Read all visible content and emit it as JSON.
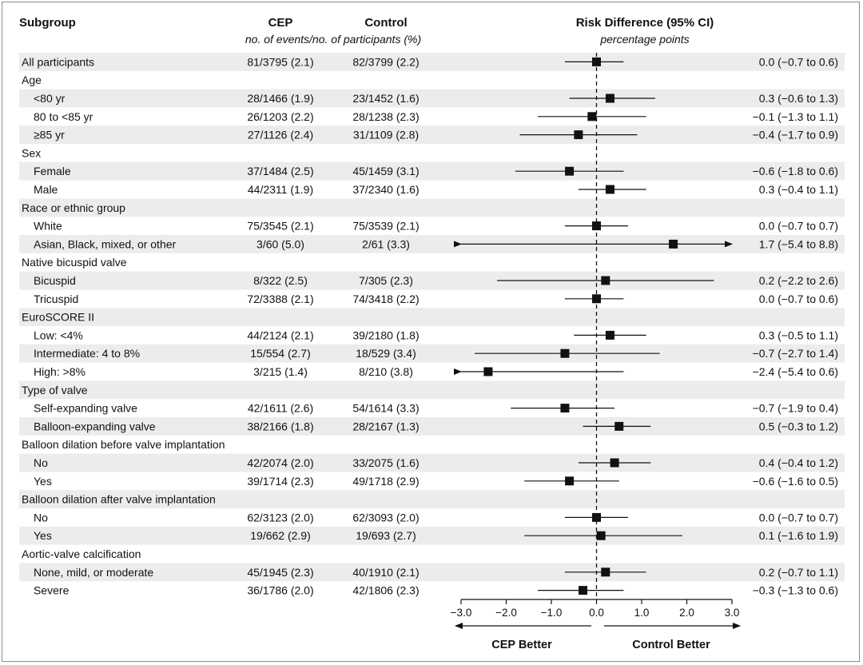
{
  "header": {
    "subgroup": "Subgroup",
    "cep": "CEP",
    "control": "Control",
    "counts_note": "no. of events/no. of participants (%)",
    "risk_title": "Risk Difference (95% CI)",
    "risk_units": "percentage points"
  },
  "colors": {
    "shade": "#ececec",
    "ink": "#111111",
    "border": "#8a8a8a"
  },
  "chart_data": {
    "type": "forest",
    "title": "Risk Difference (95% CI)",
    "xlabel": "percentage points",
    "xlim": [
      -3.0,
      3.0
    ],
    "xticks": [
      "−3.0",
      "−2.0",
      "−1.0",
      "0.0",
      "1.0",
      "2.0",
      "3.0"
    ],
    "xtick_values": [
      -3,
      -2,
      -1,
      0,
      1,
      2,
      3
    ],
    "reference_line": 0,
    "left_label": "CEP Better",
    "right_label": "Control Better",
    "rows": [
      {
        "kind": "row",
        "label": "All participants",
        "indent": false,
        "cep": "81/3795 (2.1)",
        "control": "82/3799 (2.2)",
        "ci_text": "0.0 (−0.7 to 0.6)",
        "est": 0.0,
        "lo": -0.7,
        "hi": 0.6
      },
      {
        "kind": "group",
        "label": "Age"
      },
      {
        "kind": "row",
        "label": "<80 yr",
        "indent": true,
        "cep": "28/1466 (1.9)",
        "control": "23/1452 (1.6)",
        "ci_text": "0.3 (−0.6 to 1.3)",
        "est": 0.3,
        "lo": -0.6,
        "hi": 1.3
      },
      {
        "kind": "row",
        "label": "80 to <85 yr",
        "indent": true,
        "cep": "26/1203 (2.2)",
        "control": "28/1238 (2.3)",
        "ci_text": "−0.1 (−1.3 to 1.1)",
        "est": -0.1,
        "lo": -1.3,
        "hi": 1.1
      },
      {
        "kind": "row",
        "label": "≥85 yr",
        "indent": true,
        "cep": "27/1126 (2.4)",
        "control": "31/1109 (2.8)",
        "ci_text": "−0.4 (−1.7 to 0.9)",
        "est": -0.4,
        "lo": -1.7,
        "hi": 0.9
      },
      {
        "kind": "group",
        "label": "Sex"
      },
      {
        "kind": "row",
        "label": "Female",
        "indent": true,
        "cep": "37/1484 (2.5)",
        "control": "45/1459 (3.1)",
        "ci_text": "−0.6 (−1.8 to 0.6)",
        "est": -0.6,
        "lo": -1.8,
        "hi": 0.6
      },
      {
        "kind": "row",
        "label": "Male",
        "indent": true,
        "cep": "44/2311 (1.9)",
        "control": "37/2340 (1.6)",
        "ci_text": "0.3 (−0.4 to 1.1)",
        "est": 0.3,
        "lo": -0.4,
        "hi": 1.1
      },
      {
        "kind": "group",
        "label": "Race or ethnic group"
      },
      {
        "kind": "row",
        "label": "White",
        "indent": true,
        "cep": "75/3545 (2.1)",
        "control": "75/3539 (2.1)",
        "ci_text": "0.0 (−0.7 to 0.7)",
        "est": 0.0,
        "lo": -0.7,
        "hi": 0.7
      },
      {
        "kind": "row",
        "label": "Asian, Black, mixed, or other",
        "indent": true,
        "cep": "3/60 (5.0)",
        "control": "2/61 (3.3)",
        "ci_text": "1.7 (−5.4 to 8.8)",
        "est": 1.7,
        "lo": -5.4,
        "hi": 8.8
      },
      {
        "kind": "group",
        "label": "Native bicuspid valve"
      },
      {
        "kind": "row",
        "label": "Bicuspid",
        "indent": true,
        "cep": "8/322 (2.5)",
        "control": "7/305 (2.3)",
        "ci_text": "0.2 (−2.2 to 2.6)",
        "est": 0.2,
        "lo": -2.2,
        "hi": 2.6
      },
      {
        "kind": "row",
        "label": "Tricuspid",
        "indent": true,
        "cep": "72/3388 (2.1)",
        "control": "74/3418 (2.2)",
        "ci_text": "0.0 (−0.7 to 0.6)",
        "est": 0.0,
        "lo": -0.7,
        "hi": 0.6
      },
      {
        "kind": "group",
        "label": "EuroSCORE II"
      },
      {
        "kind": "row",
        "label": "Low: <4%",
        "indent": true,
        "cep": "44/2124 (2.1)",
        "control": "39/2180 (1.8)",
        "ci_text": "0.3 (−0.5 to 1.1)",
        "est": 0.3,
        "lo": -0.5,
        "hi": 1.1
      },
      {
        "kind": "row",
        "label": "Intermediate: 4 to 8%",
        "indent": true,
        "cep": "15/554 (2.7)",
        "control": "18/529 (3.4)",
        "ci_text": "−0.7 (−2.7 to 1.4)",
        "est": -0.7,
        "lo": -2.7,
        "hi": 1.4
      },
      {
        "kind": "row",
        "label": "High: >8%",
        "indent": true,
        "cep": "3/215 (1.4)",
        "control": "8/210 (3.8)",
        "ci_text": "−2.4 (−5.4 to 0.6)",
        "est": -2.4,
        "lo": -5.4,
        "hi": 0.6
      },
      {
        "kind": "group",
        "label": "Type of valve"
      },
      {
        "kind": "row",
        "label": "Self-expanding valve",
        "indent": true,
        "cep": "42/1611 (2.6)",
        "control": "54/1614 (3.3)",
        "ci_text": "−0.7 (−1.9 to 0.4)",
        "est": -0.7,
        "lo": -1.9,
        "hi": 0.4
      },
      {
        "kind": "row",
        "label": "Balloon-expanding valve",
        "indent": true,
        "cep": "38/2166 (1.8)",
        "control": "28/2167 (1.3)",
        "ci_text": "0.5 (−0.3 to 1.2)",
        "est": 0.5,
        "lo": -0.3,
        "hi": 1.2
      },
      {
        "kind": "group",
        "label": "Balloon dilation before valve implantation"
      },
      {
        "kind": "row",
        "label": "No",
        "indent": true,
        "cep": "42/2074 (2.0)",
        "control": "33/2075 (1.6)",
        "ci_text": "0.4 (−0.4 to 1.2)",
        "est": 0.4,
        "lo": -0.4,
        "hi": 1.2
      },
      {
        "kind": "row",
        "label": "Yes",
        "indent": true,
        "cep": "39/1714 (2.3)",
        "control": "49/1718 (2.9)",
        "ci_text": "−0.6 (−1.6 to 0.5)",
        "est": -0.6,
        "lo": -1.6,
        "hi": 0.5
      },
      {
        "kind": "group",
        "label": "Balloon dilation after valve implantation"
      },
      {
        "kind": "row",
        "label": "No",
        "indent": true,
        "cep": "62/3123 (2.0)",
        "control": "62/3093 (2.0)",
        "ci_text": "0.0 (−0.7 to 0.7)",
        "est": 0.0,
        "lo": -0.7,
        "hi": 0.7
      },
      {
        "kind": "row",
        "label": "Yes",
        "indent": true,
        "cep": "19/662 (2.9)",
        "control": "19/693 (2.7)",
        "ci_text": "0.1 (−1.6 to 1.9)",
        "est": 0.1,
        "lo": -1.6,
        "hi": 1.9
      },
      {
        "kind": "group",
        "label": "Aortic-valve calcification"
      },
      {
        "kind": "row",
        "label": "None, mild, or moderate",
        "indent": true,
        "cep": "45/1945 (2.3)",
        "control": "40/1910 (2.1)",
        "ci_text": "0.2 (−0.7 to 1.1)",
        "est": 0.2,
        "lo": -0.7,
        "hi": 1.1
      },
      {
        "kind": "row",
        "label": "Severe",
        "indent": true,
        "cep": "36/1786 (2.0)",
        "control": "42/1806 (2.3)",
        "ci_text": "−0.3 (−1.3 to 0.6)",
        "est": -0.3,
        "lo": -1.3,
        "hi": 0.6
      }
    ]
  }
}
